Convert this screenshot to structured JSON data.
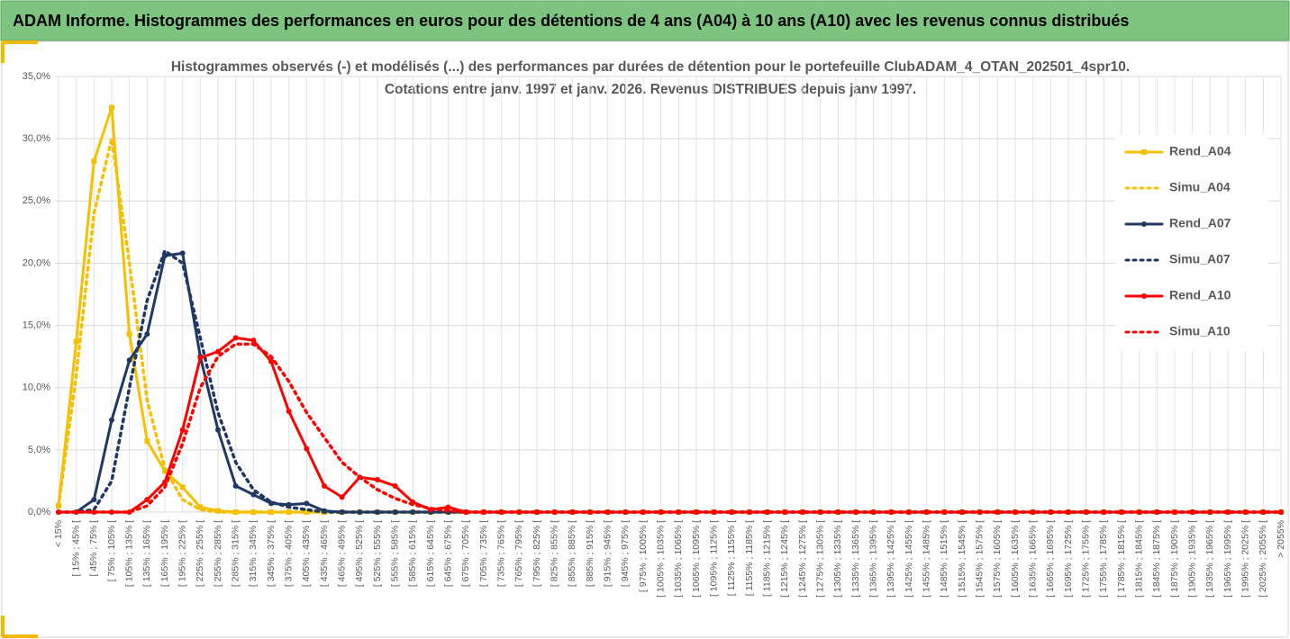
{
  "chart_data": {
    "type": "line",
    "banner": "ADAM Informe. Histogrammes des performances en euros pour des détentions de 4 ans (A04) à 10 ans (A10) avec les revenus connus distribués",
    "title": "Histogrammes observés (-) et modélisés (...) des performances par durées de détention pour le portefeuille ClubADAM_4_OTAN_202501_4spr10.",
    "subtitle": "Cotations entre janv. 1997 et janv. 2026. Revenus DISTRIBUES depuis janv 1997.",
    "categories": [
      "< 15%",
      "[ 15% ; 45% [",
      "[ 45% ; 75% [",
      "[ 75% ; 105% [",
      "[ 105% ; 135% [",
      "[ 135% ; 165% [",
      "[ 165% ; 195% [",
      "[ 195% ; 225% [",
      "[ 225% ; 255% [",
      "[ 255% ; 285% [",
      "[ 285% ; 315% [",
      "[ 315% ; 345% [",
      "[ 345% ; 375% [",
      "[ 375% ; 405% [",
      "[ 405% ; 435% [",
      "[ 435% ; 465% [",
      "[ 465% ; 495% [",
      "[ 495% ; 525% [",
      "[ 525% ; 555% [",
      "[ 555% ; 585% [",
      "[ 585% ; 615% [",
      "[ 615% ; 645% [",
      "[ 645% ; 675% [",
      "[ 675% ; 705% [",
      "[ 705% ; 735% [",
      "[ 735% ; 765% [",
      "[ 765% ; 795% [",
      "[ 795% ; 825% [",
      "[ 825% ; 855% [",
      "[ 855% ; 885% [",
      "[ 885% ; 915% [",
      "[ 915% ; 945% [",
      "[ 945% ; 975% [",
      "[ 975% ; 1005% [",
      "[ 1005% ; 1035% [",
      "[ 1035% ; 1065% [",
      "[ 1065% ; 1095% [",
      "[ 1095% ; 1125% [",
      "[ 1125% ; 1155% [",
      "[ 1155% ; 1185% [",
      "[ 1185% ; 1215% [",
      "[ 1215% ; 1245% [",
      "[ 1245% ; 1275% [",
      "[ 1275% ; 1305% [",
      "[ 1305% ; 1335% [",
      "[ 1335% ; 1365% [",
      "[ 1365% ; 1395% [",
      "[ 1395% ; 1425% [",
      "[ 1425% ; 1455% [",
      "[ 1455% ; 1485% [",
      "[ 1485% ; 1515% [",
      "[ 1515% ; 1545% [",
      "[ 1545% ; 1575% [",
      "[ 1575% ; 1605% [",
      "[ 1605% ; 1635% [",
      "[ 1635% ; 1665% [",
      "[ 1665% ; 1695% [",
      "[ 1695% ; 1725% [",
      "[ 1725% ; 1755% [",
      "[ 1755% ; 1785% [",
      "[ 1785% ; 1815% [",
      "[ 1815% ; 1845% [",
      "[ 1845% ; 1875% [",
      "[ 1875% ; 1905% [",
      "[ 1905% ; 1935% [",
      "[ 1935% ; 1965% [",
      "[ 1965% ; 1995% [",
      "[ 1995% ; 2025% [",
      "[ 2025% ; 2055% [",
      "> 2055%"
    ],
    "series": [
      {
        "name": "Rend_A04",
        "color": "#f5c000",
        "style": "solid",
        "marker": "square",
        "values": [
          0.5,
          13.7,
          28.2,
          32.5,
          14.3,
          5.7,
          3.3,
          2.0,
          0.4,
          0.1,
          0,
          0,
          0,
          0,
          0,
          0,
          0,
          0,
          0,
          0,
          0,
          0,
          0,
          0,
          0,
          0,
          0,
          0,
          0,
          0,
          0,
          0,
          0,
          0,
          0,
          0,
          0,
          0,
          0,
          0,
          0,
          0,
          0,
          0,
          0,
          0,
          0,
          0,
          0,
          0,
          0,
          0,
          0,
          0,
          0,
          0,
          0,
          0,
          0,
          0,
          0,
          0,
          0,
          0,
          0,
          0,
          0,
          0,
          0,
          0
        ]
      },
      {
        "name": "Simu_A04",
        "color": "#f5c000",
        "style": "dotted",
        "marker": "none",
        "values": [
          0.5,
          11,
          24,
          30,
          20,
          9,
          3.5,
          1,
          0.2,
          0,
          0,
          0,
          0,
          0,
          0,
          0,
          0,
          0,
          0,
          0,
          0,
          0,
          0,
          0,
          0,
          0,
          0,
          0,
          0,
          0,
          0,
          0,
          0,
          0,
          0,
          0,
          0,
          0,
          0,
          0,
          0,
          0,
          0,
          0,
          0,
          0,
          0,
          0,
          0,
          0,
          0,
          0,
          0,
          0,
          0,
          0,
          0,
          0,
          0,
          0,
          0,
          0,
          0,
          0,
          0,
          0,
          0,
          0,
          0,
          0
        ]
      },
      {
        "name": "Rend_A07",
        "color": "#1f3864",
        "style": "solid",
        "marker": "circle",
        "values": [
          0,
          0,
          1.0,
          7.4,
          12.2,
          14.3,
          20.6,
          20.8,
          12.5,
          6.6,
          2.1,
          1.4,
          0.7,
          0.6,
          0.7,
          0.1,
          0,
          0,
          0,
          0,
          0,
          0,
          0,
          0,
          0,
          0,
          0,
          0,
          0,
          0,
          0,
          0,
          0,
          0,
          0,
          0,
          0,
          0,
          0,
          0,
          0,
          0,
          0,
          0,
          0,
          0,
          0,
          0,
          0,
          0,
          0,
          0,
          0,
          0,
          0,
          0,
          0,
          0,
          0,
          0,
          0,
          0,
          0,
          0,
          0,
          0,
          0,
          0,
          0,
          0
        ]
      },
      {
        "name": "Simu_A07",
        "color": "#1f3864",
        "style": "dotted",
        "marker": "none",
        "values": [
          0,
          0,
          0.2,
          2.5,
          10,
          17,
          21,
          20,
          14,
          8,
          4,
          1.8,
          0.8,
          0.4,
          0.2,
          0,
          0,
          0,
          0,
          0,
          0,
          0,
          0,
          0,
          0,
          0,
          0,
          0,
          0,
          0,
          0,
          0,
          0,
          0,
          0,
          0,
          0,
          0,
          0,
          0,
          0,
          0,
          0,
          0,
          0,
          0,
          0,
          0,
          0,
          0,
          0,
          0,
          0,
          0,
          0,
          0,
          0,
          0,
          0,
          0,
          0,
          0,
          0,
          0,
          0,
          0,
          0,
          0,
          0,
          0
        ]
      },
      {
        "name": "Rend_A10",
        "color": "#ff0000",
        "style": "solid",
        "marker": "circle",
        "values": [
          0,
          0,
          0,
          0,
          0,
          1.0,
          2.4,
          6.6,
          12.4,
          12.9,
          14.0,
          13.8,
          12.1,
          8.1,
          5.1,
          2.1,
          1.2,
          2.8,
          2.6,
          2.1,
          0.8,
          0.2,
          0.4,
          0,
          0,
          0,
          0,
          0,
          0,
          0,
          0,
          0,
          0,
          0,
          0,
          0,
          0,
          0,
          0,
          0,
          0,
          0,
          0,
          0,
          0,
          0,
          0,
          0,
          0,
          0,
          0,
          0,
          0,
          0,
          0,
          0,
          0,
          0,
          0,
          0,
          0,
          0,
          0,
          0,
          0,
          0,
          0,
          0,
          0,
          0
        ]
      },
      {
        "name": "Simu_A10",
        "color": "#ff0000",
        "style": "dotted",
        "marker": "none",
        "values": [
          0,
          0,
          0,
          0,
          0,
          0.5,
          2,
          5.5,
          10,
          12.5,
          13.5,
          13.5,
          12.5,
          10.5,
          8,
          6,
          4,
          2.8,
          1.8,
          1.1,
          0.6,
          0.3,
          0.1,
          0,
          0,
          0,
          0,
          0,
          0,
          0,
          0,
          0,
          0,
          0,
          0,
          0,
          0,
          0,
          0,
          0,
          0,
          0,
          0,
          0,
          0,
          0,
          0,
          0,
          0,
          0,
          0,
          0,
          0,
          0,
          0,
          0,
          0,
          0,
          0,
          0,
          0,
          0,
          0,
          0,
          0,
          0,
          0,
          0,
          0,
          0
        ]
      }
    ],
    "ylim": [
      0,
      35
    ],
    "yticks": [
      {
        "value": 0,
        "label": "0,0%"
      },
      {
        "value": 5,
        "label": "5,0%"
      },
      {
        "value": 10,
        "label": "10,0%"
      },
      {
        "value": 15,
        "label": "15,0%"
      },
      {
        "value": 20,
        "label": "20,0%"
      },
      {
        "value": 25,
        "label": "25,0%"
      },
      {
        "value": 30,
        "label": "30,0%"
      },
      {
        "value": 35,
        "label": "35,0%"
      }
    ],
    "grid": true,
    "legend": "right"
  }
}
